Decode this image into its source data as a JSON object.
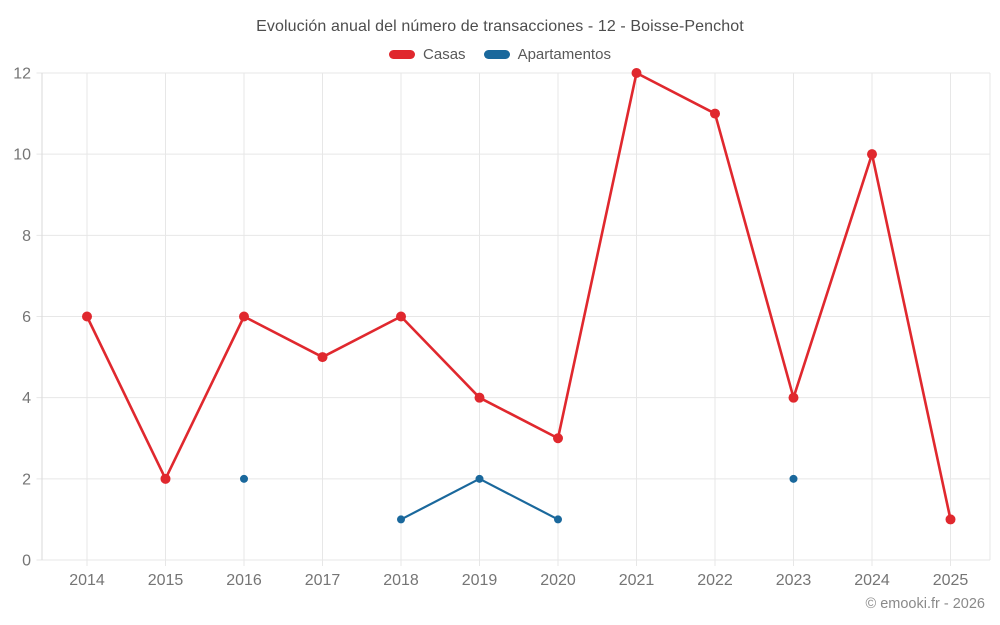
{
  "header": {
    "title": "Evolución anual del número de transacciones - 12 - Boisse-Penchot"
  },
  "footer": {
    "attribution": "© emooki.fr - 2026"
  },
  "chart_data": {
    "type": "line",
    "title": "Evolución anual del número de transacciones - 12 - Boisse-Penchot",
    "categories": [
      "2014",
      "2015",
      "2016",
      "2017",
      "2018",
      "2019",
      "2020",
      "2021",
      "2022",
      "2023",
      "2024",
      "2025"
    ],
    "series": [
      {
        "name": "Casas",
        "color": "#e0282e",
        "values": [
          6,
          2,
          6,
          5,
          6,
          4,
          3,
          12,
          11,
          4,
          10,
          1
        ],
        "marker_radius": 5,
        "line_width": 2.6
      },
      {
        "name": "Apartamentos",
        "color": "#1a689c",
        "values": [
          null,
          null,
          2,
          null,
          1,
          2,
          1,
          null,
          null,
          2,
          null,
          null
        ],
        "marker_radius": 4,
        "line_width": 2.2
      }
    ],
    "xlabel": "",
    "ylabel": "",
    "y_axis": {
      "min": 0,
      "max": 12,
      "ticks": [
        0,
        2,
        4,
        6,
        8,
        10,
        12
      ]
    },
    "grid": true,
    "legend_position": "top",
    "style": {
      "grid_color": "#e7e7e7",
      "axis_line_color": "#dadada",
      "tick_label_color": "#757575",
      "title_color": "#4d4d4d",
      "attribution_color": "#8a8a8a"
    }
  }
}
